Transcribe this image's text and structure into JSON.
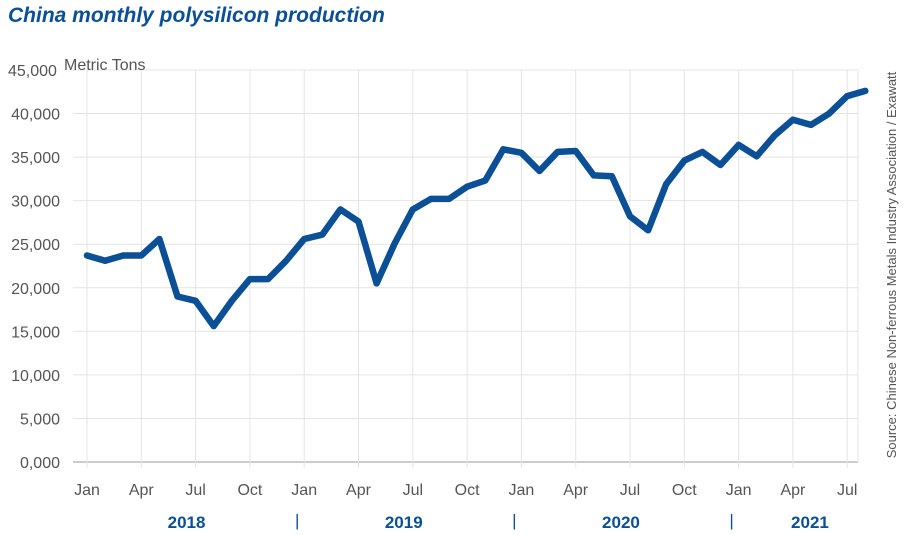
{
  "chart_data": {
    "type": "line",
    "title": "China monthly polysilicon production",
    "unit_label": "Metric Tons",
    "source": "Source: Chinese Non-ferrous Metals Industry Association / Exawatt",
    "ylim": [
      0,
      45000
    ],
    "y_ticks": [
      "0,000",
      "5,000",
      "10,000",
      "15,000",
      "20,000",
      "25,000",
      "30,000",
      "35,000",
      "40,000",
      "45,000"
    ],
    "x_ticks": [
      "Jan",
      "Apr",
      "Jul",
      "Oct",
      "Jan",
      "Apr",
      "Jul",
      "Oct",
      "Jan",
      "Apr",
      "Jul",
      "Oct",
      "Jan",
      "Apr",
      "Jul"
    ],
    "x_tick_months": [
      0,
      3,
      6,
      9,
      12,
      15,
      18,
      21,
      24,
      27,
      30,
      33,
      36,
      39,
      42
    ],
    "years": [
      "2018",
      "2019",
      "2020",
      "2021"
    ],
    "year_separator": "|",
    "grid": true,
    "line_color": "#0b4f96",
    "x": [
      "2018-01",
      "2018-02",
      "2018-03",
      "2018-04",
      "2018-05",
      "2018-06",
      "2018-07",
      "2018-08",
      "2018-09",
      "2018-10",
      "2018-11",
      "2018-12",
      "2019-01",
      "2019-02",
      "2019-03",
      "2019-04",
      "2019-05",
      "2019-06",
      "2019-07",
      "2019-08",
      "2019-09",
      "2019-10",
      "2019-11",
      "2019-12",
      "2020-01",
      "2020-02",
      "2020-03",
      "2020-04",
      "2020-05",
      "2020-06",
      "2020-07",
      "2020-08",
      "2020-09",
      "2020-10",
      "2020-11",
      "2020-12",
      "2021-01",
      "2021-02",
      "2021-03",
      "2021-04",
      "2021-05",
      "2021-06",
      "2021-07",
      "2021-08"
    ],
    "values": [
      23700,
      23100,
      23700,
      23700,
      25600,
      19000,
      18500,
      15600,
      18500,
      21000,
      21000,
      23100,
      25600,
      26100,
      29000,
      27600,
      20500,
      25100,
      29000,
      30200,
      30200,
      31600,
      32300,
      35900,
      35500,
      33400,
      35600,
      35700,
      32900,
      32800,
      28200,
      26600,
      31900,
      34600,
      35600,
      34100,
      36400,
      35100,
      37500,
      39300,
      38700,
      40000,
      42000,
      42600
    ]
  }
}
